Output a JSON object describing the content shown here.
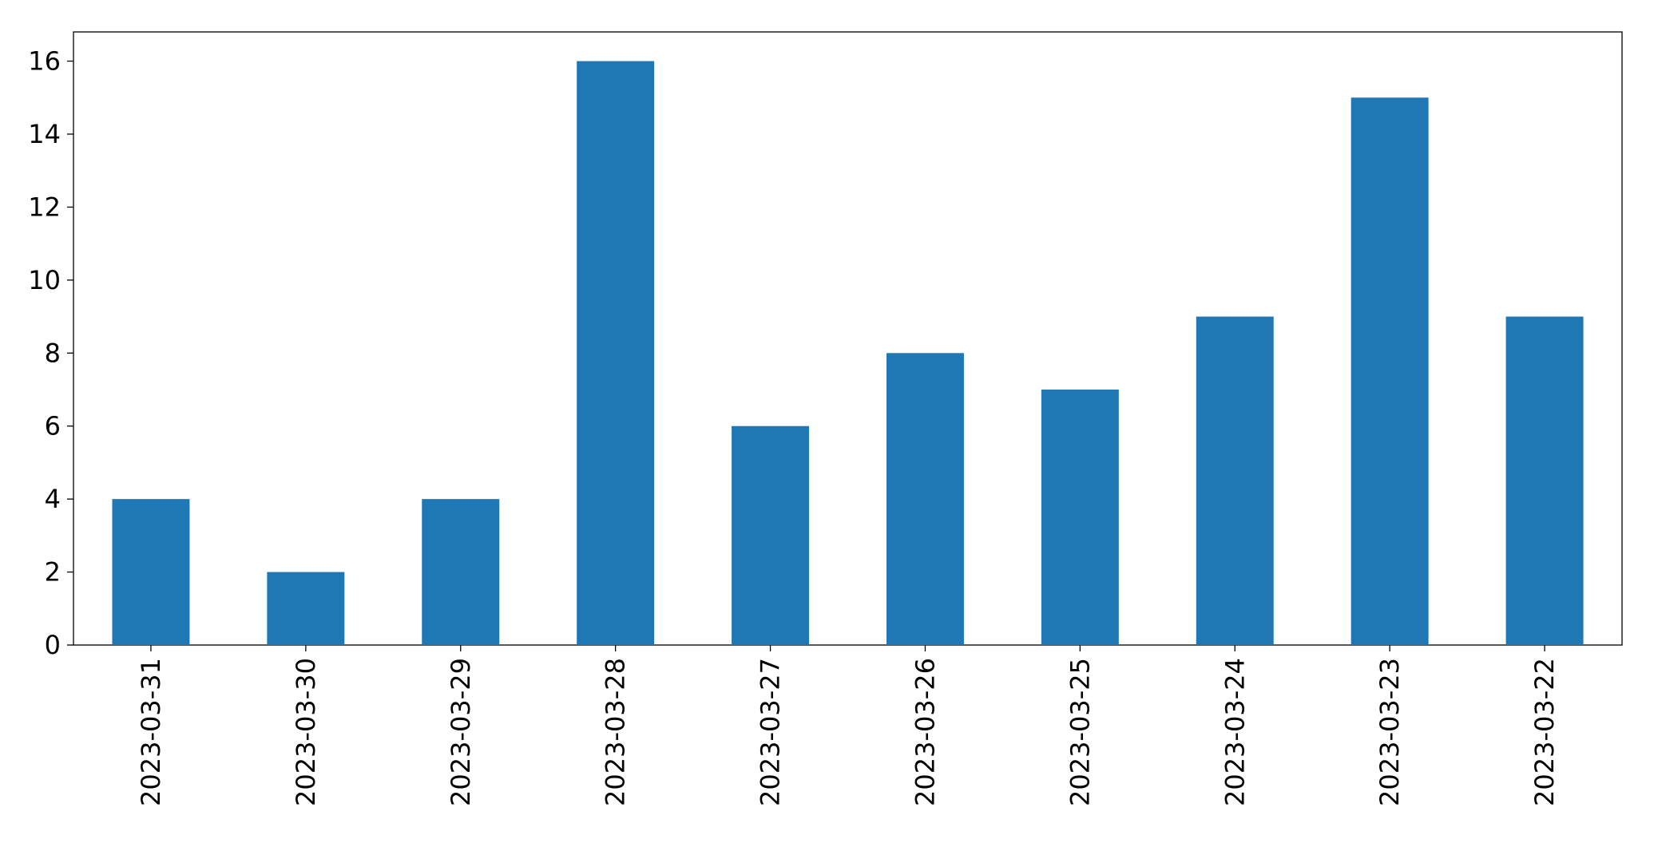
{
  "chart_data": {
    "type": "bar",
    "categories": [
      "2023-03-31",
      "2023-03-30",
      "2023-03-29",
      "2023-03-28",
      "2023-03-27",
      "2023-03-26",
      "2023-03-25",
      "2023-03-24",
      "2023-03-23",
      "2023-03-22"
    ],
    "values": [
      4,
      2,
      4,
      16,
      6,
      8,
      7,
      9,
      15,
      9
    ],
    "color": "#1f77b4",
    "ylim": [
      0,
      16.8
    ],
    "yticks": [
      0,
      2,
      4,
      6,
      8,
      10,
      12,
      14,
      16
    ],
    "grid": false
  }
}
